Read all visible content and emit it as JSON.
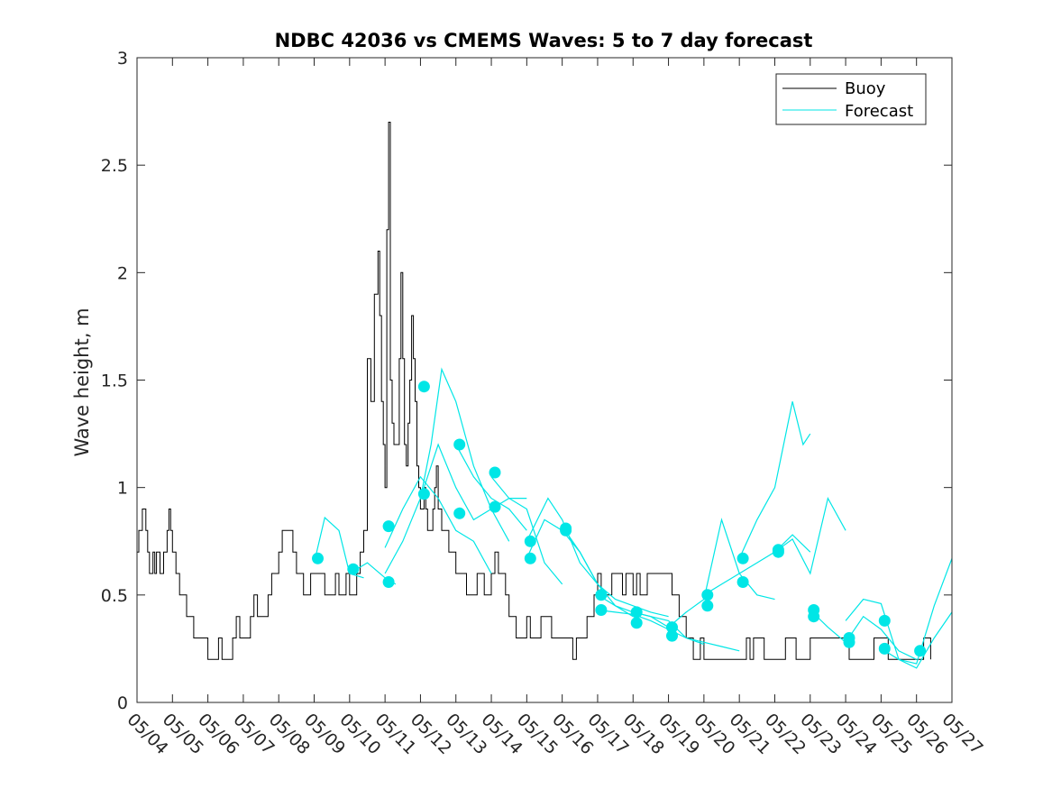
{
  "chart_data": {
    "type": "line",
    "title": "NDBC 42036 vs CMEMS Waves: 5 to 7 day forecast",
    "xlabel": "",
    "ylabel": "Wave height, m",
    "xlim": [
      "05/04",
      "05/27"
    ],
    "ylim": [
      0,
      3
    ],
    "x_ticks": [
      "05/04",
      "05/05",
      "05/06",
      "05/07",
      "05/08",
      "05/09",
      "05/10",
      "05/11",
      "05/12",
      "05/13",
      "05/14",
      "05/15",
      "05/16",
      "05/17",
      "05/18",
      "05/19",
      "05/20",
      "05/21",
      "05/22",
      "05/23",
      "05/24",
      "05/25",
      "05/26",
      "05/27"
    ],
    "y_ticks": [
      0,
      0.5,
      1,
      1.5,
      2,
      2.5,
      3
    ],
    "y_tick_labels": [
      "0",
      "0.5",
      "1",
      "1.5",
      "2",
      "2.5",
      "3"
    ],
    "grid": false,
    "legend_position": "top-right",
    "colors": {
      "buoy": "#000000",
      "forecast": "#00e6e6",
      "axis": "#262626"
    },
    "series": [
      {
        "name": "Buoy",
        "x_day": [
          0,
          0.05,
          0.1,
          0.15,
          0.2,
          0.25,
          0.3,
          0.35,
          0.4,
          0.45,
          0.5,
          0.55,
          0.6,
          0.65,
          0.7,
          0.75,
          0.8,
          0.85,
          0.9,
          0.95,
          1.0,
          1.05,
          1.1,
          1.15,
          1.2,
          1.25,
          1.3,
          1.4,
          1.5,
          1.6,
          1.7,
          1.8,
          1.9,
          2.0,
          2.1,
          2.2,
          2.3,
          2.4,
          2.5,
          2.6,
          2.7,
          2.8,
          2.9,
          3.0,
          3.1,
          3.2,
          3.3,
          3.4,
          3.5,
          3.6,
          3.7,
          3.8,
          3.9,
          4.0,
          4.1,
          4.2,
          4.3,
          4.4,
          4.5,
          4.6,
          4.7,
          4.8,
          4.9,
          5.0,
          5.1,
          5.2,
          5.3,
          5.4,
          5.5,
          5.6,
          5.7,
          5.8,
          5.9,
          6.0,
          6.1,
          6.2,
          6.3,
          6.4,
          6.5,
          6.6,
          6.7,
          6.8,
          6.85,
          6.9,
          6.95,
          7.0,
          7.05,
          7.1,
          7.15,
          7.2,
          7.25,
          7.3,
          7.35,
          7.4,
          7.45,
          7.5,
          7.55,
          7.6,
          7.65,
          7.7,
          7.75,
          7.8,
          7.85,
          7.9,
          7.95,
          8.0,
          8.05,
          8.1,
          8.15,
          8.2,
          8.25,
          8.3,
          8.35,
          8.4,
          8.45,
          8.5,
          8.6,
          8.7,
          8.8,
          8.9,
          9.0,
          9.1,
          9.2,
          9.3,
          9.4,
          9.5,
          9.6,
          9.7,
          9.8,
          9.9,
          10.0,
          10.1,
          10.2,
          10.3,
          10.4,
          10.5,
          10.6,
          10.7,
          10.8,
          10.9,
          11.0,
          11.1,
          11.2,
          11.3,
          11.4,
          11.5,
          11.6,
          11.7,
          11.8,
          11.9,
          12.0,
          12.1,
          12.2,
          12.3,
          12.4,
          12.5,
          12.6,
          12.7,
          12.8,
          12.9,
          13.0,
          13.1,
          13.2,
          13.3,
          13.4,
          13.5,
          13.6,
          13.7,
          13.8,
          13.9,
          14.0,
          14.1,
          14.2,
          14.3,
          14.4,
          14.5,
          14.6,
          14.7,
          14.8,
          14.9,
          15.0,
          15.1,
          15.2,
          15.3,
          15.4,
          15.5,
          15.6,
          15.7,
          15.8,
          15.9,
          16.0,
          16.1,
          16.2,
          16.3,
          16.4,
          16.5,
          16.6,
          16.7,
          16.8,
          16.9,
          17.0,
          17.1,
          17.2,
          17.3,
          17.4,
          17.5,
          17.6,
          17.7,
          17.8,
          17.9,
          18.0,
          18.1,
          18.2,
          18.3,
          18.4,
          18.5,
          18.6,
          18.7,
          18.8,
          18.9,
          19.0,
          19.1,
          19.2,
          19.3,
          19.4,
          19.5,
          19.6,
          19.7,
          19.8,
          19.9,
          20.0,
          20.1,
          20.2,
          20.3,
          20.4,
          20.5,
          20.6,
          20.7,
          20.8,
          20.9,
          21.0,
          21.1,
          21.2,
          21.3,
          21.4,
          21.5,
          21.6,
          21.7,
          21.8,
          21.9,
          22.0,
          22.1,
          22.2,
          22.3,
          22.4
        ],
        "values": [
          0.7,
          0.8,
          0.8,
          0.9,
          0.9,
          0.8,
          0.7,
          0.6,
          0.6,
          0.7,
          0.6,
          0.7,
          0.7,
          0.6,
          0.6,
          0.7,
          0.7,
          0.8,
          0.9,
          0.8,
          0.7,
          0.7,
          0.6,
          0.6,
          0.5,
          0.5,
          0.5,
          0.4,
          0.4,
          0.3,
          0.3,
          0.3,
          0.3,
          0.2,
          0.2,
          0.2,
          0.3,
          0.2,
          0.2,
          0.2,
          0.3,
          0.4,
          0.3,
          0.3,
          0.3,
          0.4,
          0.5,
          0.4,
          0.4,
          0.4,
          0.5,
          0.6,
          0.6,
          0.7,
          0.8,
          0.8,
          0.8,
          0.7,
          0.6,
          0.6,
          0.5,
          0.5,
          0.6,
          0.6,
          0.6,
          0.6,
          0.5,
          0.5,
          0.5,
          0.6,
          0.5,
          0.5,
          0.6,
          0.5,
          0.5,
          0.6,
          0.7,
          0.8,
          1.6,
          1.4,
          1.9,
          2.1,
          1.8,
          1.4,
          1.2,
          1.0,
          2.2,
          2.7,
          1.5,
          1.3,
          1.2,
          1.2,
          1.2,
          1.6,
          2.0,
          1.6,
          1.2,
          1.1,
          1.3,
          1.5,
          1.8,
          1.6,
          1.4,
          1.1,
          1.0,
          0.9,
          0.9,
          1.0,
          0.9,
          0.8,
          0.8,
          0.8,
          0.9,
          1.0,
          1.1,
          0.9,
          0.8,
          0.8,
          0.7,
          0.7,
          0.6,
          0.6,
          0.6,
          0.5,
          0.5,
          0.5,
          0.6,
          0.6,
          0.5,
          0.5,
          0.6,
          0.7,
          0.6,
          0.6,
          0.5,
          0.4,
          0.4,
          0.3,
          0.3,
          0.3,
          0.4,
          0.3,
          0.3,
          0.3,
          0.4,
          0.4,
          0.4,
          0.3,
          0.3,
          0.3,
          0.3,
          0.3,
          0.3,
          0.2,
          0.3,
          0.3,
          0.3,
          0.4,
          0.4,
          0.5,
          0.6,
          0.5,
          0.5,
          0.5,
          0.6,
          0.6,
          0.6,
          0.5,
          0.6,
          0.6,
          0.5,
          0.6,
          0.5,
          0.5,
          0.6,
          0.6,
          0.6,
          0.6,
          0.6,
          0.6,
          0.6,
          0.5,
          0.5,
          0.4,
          0.4,
          0.3,
          0.3,
          0.2,
          0.2,
          0.3,
          0.2,
          0.2,
          0.2,
          0.2,
          0.2,
          0.2,
          0.2,
          0.2,
          0.2,
          0.2,
          0.2,
          0.2,
          0.3,
          0.2,
          0.3,
          0.3,
          0.3,
          0.2,
          0.2,
          0.2,
          0.2,
          0.2,
          0.2,
          0.3,
          0.3,
          0.3,
          0.2,
          0.2,
          0.2,
          0.2,
          0.3,
          0.3,
          0.3,
          0.3,
          0.3,
          0.3,
          0.3,
          0.3,
          0.3,
          0.3,
          0.3,
          0.2,
          0.2,
          0.2,
          0.2,
          0.2,
          0.2,
          0.2,
          0.3,
          0.3,
          0.3,
          0.3,
          0.2,
          0.2,
          0.2,
          0.2,
          0.2,
          0.2,
          0.2,
          0.2,
          0.2,
          0.2,
          0.3,
          0.3,
          0.2
        ]
      },
      {
        "name": "Forecast",
        "segments": [
          {
            "x_day": [
              5.0,
              5.3,
              5.7,
              6.0,
              6.4
            ],
            "values": [
              0.65,
              0.86,
              0.8,
              0.6,
              0.58
            ]
          },
          {
            "x_day": [
              6.0,
              6.5,
              7.0,
              7.3
            ],
            "values": [
              0.6,
              0.65,
              0.58,
              0.55
            ]
          },
          {
            "x_day": [
              7.0,
              7.5,
              8.0,
              8.5,
              9.0,
              9.5,
              10.0
            ],
            "values": [
              0.72,
              0.9,
              1.05,
              0.95,
              0.8,
              0.75,
              0.6
            ]
          },
          {
            "x_day": [
              7.0,
              7.5,
              8.0,
              8.3,
              8.6,
              9.0,
              9.5,
              10.0,
              10.5
            ],
            "values": [
              0.6,
              0.75,
              0.95,
              1.2,
              1.55,
              1.4,
              1.1,
              0.9,
              0.75
            ]
          },
          {
            "x_day": [
              8.0,
              8.5,
              9.0,
              9.5,
              10.0,
              10.5,
              11.0
            ],
            "values": [
              0.95,
              1.2,
              1.0,
              0.85,
              0.9,
              0.95,
              0.95
            ]
          },
          {
            "x_day": [
              9.0,
              9.5,
              10.0,
              10.5,
              11.0
            ],
            "values": [
              1.2,
              1.05,
              0.95,
              0.9,
              0.8
            ]
          },
          {
            "x_day": [
              10.0,
              10.5,
              11.0,
              11.5,
              12.0
            ],
            "values": [
              1.05,
              0.95,
              0.9,
              0.65,
              0.55
            ]
          },
          {
            "x_day": [
              11.0,
              11.3,
              11.6,
              12.0,
              12.5,
              13.0
            ],
            "values": [
              0.75,
              0.85,
              0.95,
              0.85,
              0.65,
              0.55
            ]
          },
          {
            "x_day": [
              11.0,
              11.5,
              12.0,
              12.5,
              13.0,
              13.5,
              14.0
            ],
            "values": [
              0.67,
              0.85,
              0.8,
              0.7,
              0.55,
              0.45,
              0.4
            ]
          },
          {
            "x_day": [
              12.0,
              12.5,
              13.0,
              13.5,
              14.0,
              14.5,
              15.0
            ],
            "values": [
              0.82,
              0.7,
              0.55,
              0.48,
              0.45,
              0.42,
              0.4
            ]
          },
          {
            "x_day": [
              13.0,
              13.5,
              14.0,
              14.5,
              15.0
            ],
            "values": [
              0.5,
              0.45,
              0.42,
              0.4,
              0.35
            ]
          },
          {
            "x_day": [
              13.0,
              13.5,
              14.0,
              14.5,
              15.0,
              15.5,
              16.0
            ],
            "values": [
              0.43,
              0.42,
              0.41,
              0.38,
              0.34,
              0.3,
              0.27
            ]
          },
          {
            "x_day": [
              14.0,
              14.5,
              15.0,
              15.5,
              16.0,
              16.5,
              17.0
            ],
            "values": [
              0.42,
              0.4,
              0.38,
              0.3,
              0.28,
              0.26,
              0.24
            ]
          },
          {
            "x_day": [
              15.0,
              15.5,
              16.0,
              16.5,
              17.0,
              17.5,
              18.0
            ],
            "values": [
              0.35,
              0.42,
              0.48,
              0.85,
              0.6,
              0.5,
              0.48
            ]
          },
          {
            "x_day": [
              16.0,
              16.5,
              17.0,
              17.5,
              18.0,
              18.5,
              19.0
            ],
            "values": [
              0.5,
              0.55,
              0.6,
              0.65,
              0.7,
              0.78,
              0.7
            ]
          },
          {
            "x_day": [
              17.0,
              17.5,
              18.0,
              18.5,
              18.8,
              19.0
            ],
            "values": [
              0.67,
              0.85,
              1.0,
              1.4,
              1.2,
              1.25
            ]
          },
          {
            "x_day": [
              18.0,
              18.5,
              19.0,
              19.5,
              20.0
            ],
            "values": [
              0.7,
              0.76,
              0.6,
              0.95,
              0.8
            ]
          },
          {
            "x_day": [
              19.0,
              19.5,
              20.0,
              20.5,
              21.0,
              21.5,
              22.0
            ],
            "values": [
              0.43,
              0.35,
              0.28,
              0.4,
              0.34,
              0.24,
              0.2
            ]
          },
          {
            "x_day": [
              20.0,
              20.5,
              21.0,
              21.5,
              22.0,
              22.5,
              23.0
            ],
            "values": [
              0.38,
              0.48,
              0.46,
              0.2,
              0.18,
              0.45,
              0.67
            ]
          },
          {
            "x_day": [
              21.0,
              21.5,
              22.0,
              22.5,
              23.0
            ],
            "values": [
              0.25,
              0.2,
              0.16,
              0.3,
              0.42
            ]
          }
        ],
        "markers_x_day": [
          5.1,
          6.1,
          7.1,
          7.1,
          8.1,
          8.1,
          9.1,
          9.1,
          10.1,
          10.1,
          11.1,
          11.1,
          12.1,
          12.1,
          13.1,
          13.1,
          14.1,
          14.1,
          15.1,
          15.1,
          16.1,
          16.1,
          17.1,
          17.1,
          18.1,
          18.1,
          19.1,
          19.1,
          20.1,
          20.1,
          21.1,
          21.1,
          22.1
        ],
        "markers_values": [
          0.67,
          0.62,
          0.56,
          0.82,
          0.97,
          1.47,
          0.88,
          1.2,
          0.91,
          1.07,
          0.67,
          0.75,
          0.81,
          0.8,
          0.5,
          0.43,
          0.37,
          0.42,
          0.35,
          0.31,
          0.5,
          0.45,
          0.67,
          0.56,
          0.71,
          0.7,
          0.43,
          0.4,
          0.3,
          0.28,
          0.38,
          0.25,
          0.24
        ]
      }
    ]
  }
}
